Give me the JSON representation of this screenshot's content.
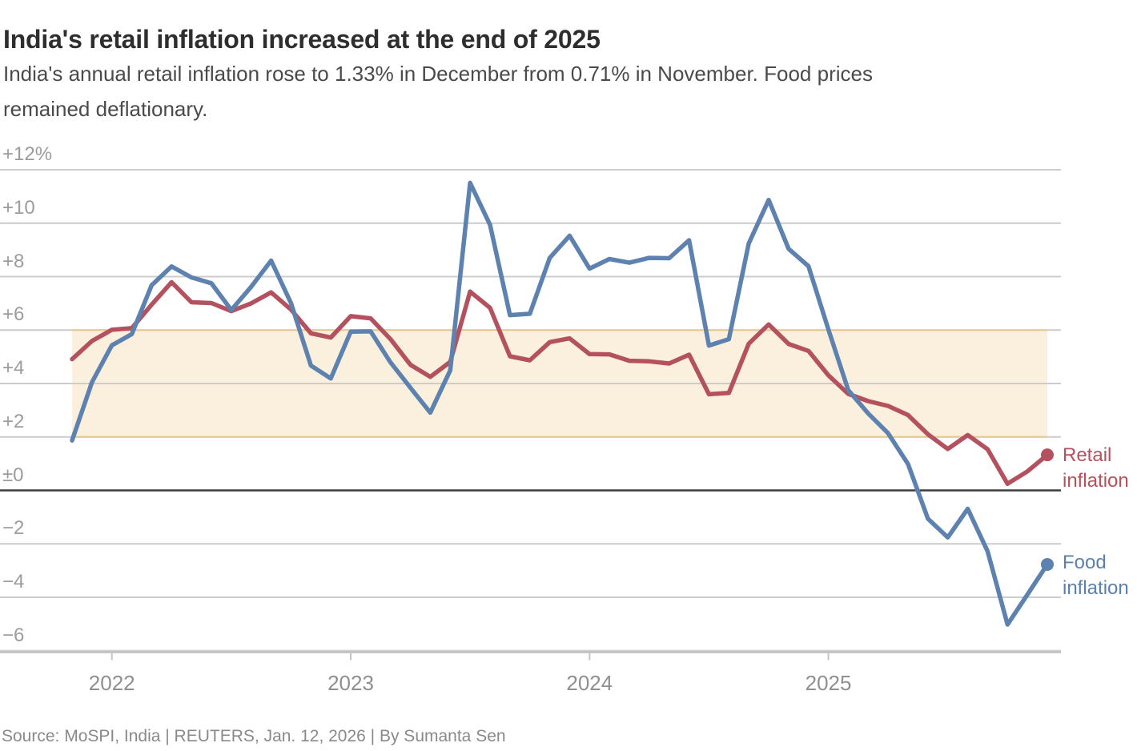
{
  "header": {
    "title": "India's retail inflation increased at the end of 2025",
    "subtitle_lines": [
      "India's annual retail inflation rose to 1.33% in December from 0.71% in November. Food prices",
      "remained deflationary."
    ]
  },
  "source_line": "Source: MoSPI, India | REUTERS, Jan. 12, 2026 | By Sumanta Sen",
  "chart_data": {
    "type": "line",
    "title": "India's retail inflation increased at the end of 2025",
    "x_months": [
      "Nov 2021",
      "Dec 2021",
      "Jan 2022",
      "Feb 2022",
      "Mar 2022",
      "Apr 2022",
      "May 2022",
      "Jun 2022",
      "Jul 2022",
      "Aug 2022",
      "Sep 2022",
      "Oct 2022",
      "Nov 2022",
      "Dec 2022",
      "Jan 2023",
      "Feb 2023",
      "Mar 2023",
      "Apr 2023",
      "May 2023",
      "Jun 2023",
      "Jul 2023",
      "Aug 2023",
      "Sep 2023",
      "Oct 2023",
      "Nov 2023",
      "Dec 2023",
      "Jan 2024",
      "Feb 2024",
      "Mar 2024",
      "Apr 2024",
      "May 2024",
      "Jun 2024",
      "Jul 2024",
      "Aug 2024",
      "Sep 2024",
      "Oct 2024",
      "Nov 2024",
      "Dec 2024",
      "Jan 2025",
      "Feb 2025",
      "Mar 2025",
      "Apr 2025",
      "May 2025",
      "Jun 2025",
      "Jul 2025",
      "Aug 2025",
      "Sep 2025",
      "Oct 2025",
      "Nov 2025",
      "Dec 2025"
    ],
    "series": [
      {
        "name": "Retail inflation",
        "label_lines": [
          "Retail",
          "inflation"
        ],
        "color": "#b4515e",
        "end_dot": true,
        "values": [
          4.91,
          5.59,
          6.01,
          6.07,
          6.95,
          7.79,
          7.04,
          7.01,
          6.71,
          7.0,
          7.41,
          6.77,
          5.88,
          5.72,
          6.52,
          6.44,
          5.66,
          4.7,
          4.25,
          4.81,
          7.44,
          6.83,
          5.02,
          4.87,
          5.55,
          5.69,
          5.1,
          5.09,
          4.85,
          4.83,
          4.75,
          5.08,
          3.6,
          3.65,
          5.49,
          6.21,
          5.48,
          5.22,
          4.31,
          3.61,
          3.34,
          3.16,
          2.82,
          2.1,
          1.55,
          2.07,
          1.54,
          0.25,
          0.71,
          1.33
        ]
      },
      {
        "name": "Food inflation",
        "label_lines": [
          "Food",
          "inflation"
        ],
        "color": "#5e82b0",
        "end_dot": true,
        "values": [
          1.87,
          4.05,
          5.43,
          5.85,
          7.68,
          8.38,
          7.97,
          7.75,
          6.75,
          7.62,
          8.6,
          7.01,
          4.67,
          4.19,
          5.94,
          5.95,
          4.79,
          3.84,
          2.91,
          4.49,
          11.51,
          9.94,
          6.56,
          6.61,
          8.7,
          9.53,
          8.3,
          8.66,
          8.52,
          8.7,
          8.69,
          9.36,
          5.42,
          5.66,
          9.24,
          10.87,
          9.04,
          8.39,
          6.02,
          3.75,
          2.88,
          2.14,
          0.99,
          -1.06,
          -1.76,
          -0.69,
          -2.28,
          -5.02,
          -3.9,
          -2.77
        ]
      }
    ],
    "xlabel": "",
    "ylabel": "",
    "ylim": [
      -6.9,
      12.9
    ],
    "yticks": [
      {
        "value": 12,
        "label": "+12%"
      },
      {
        "value": 10,
        "label": "+10"
      },
      {
        "value": 8,
        "label": "+8"
      },
      {
        "value": 6,
        "label": "+6"
      },
      {
        "value": 4,
        "label": "+4"
      },
      {
        "value": 2,
        "label": "+2"
      },
      {
        "value": 0,
        "label": "±0"
      },
      {
        "value": -2,
        "label": "−2"
      },
      {
        "value": -4,
        "label": "−4"
      },
      {
        "value": -6,
        "label": "−6"
      }
    ],
    "xticks": [
      {
        "month_index": 2,
        "label": "2022"
      },
      {
        "month_index": 14,
        "label": "2023"
      },
      {
        "month_index": 26,
        "label": "2024"
      },
      {
        "month_index": 38,
        "label": "2025"
      }
    ],
    "tolerance_band": {
      "from": 2,
      "to": 6,
      "fill": "#fbf0de",
      "edge_color": "#e9c88f"
    },
    "grid": true,
    "grid_color": "#cccccc",
    "zero_line_color": "#3d3d3d",
    "axis_line_color": "#c5c5c5",
    "y_label_color": "#9c9c9c",
    "x_label_color": "#8f8f8f",
    "legend_position": "right"
  }
}
